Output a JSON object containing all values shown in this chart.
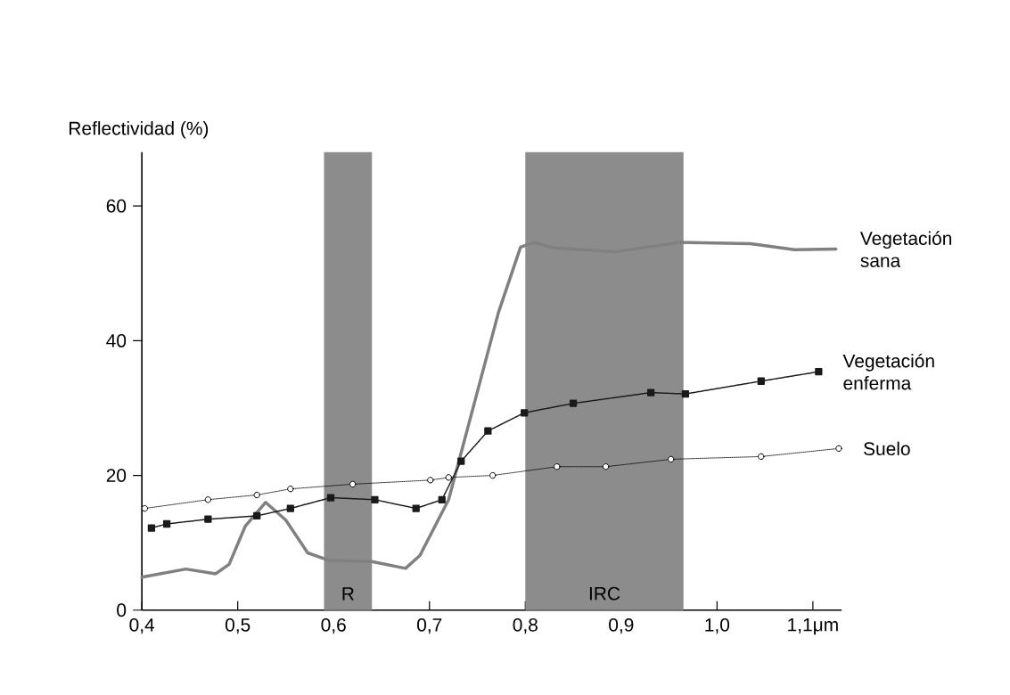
{
  "chart_data": {
    "type": "line",
    "ylabel": "Reflectividad (%)",
    "xlim": [
      0.4,
      1.13
    ],
    "ylim": [
      0,
      68
    ],
    "xticks": [
      {
        "value": 0.4,
        "label": "0,4"
      },
      {
        "value": 0.5,
        "label": "0,5"
      },
      {
        "value": 0.6,
        "label": "0,6"
      },
      {
        "value": 0.7,
        "label": "0,7"
      },
      {
        "value": 0.8,
        "label": "0,8"
      },
      {
        "value": 0.9,
        "label": "0,9"
      },
      {
        "value": 1.0,
        "label": "1,0"
      },
      {
        "value": 1.1,
        "label": "1,1μm"
      }
    ],
    "yticks": [
      0,
      20,
      40,
      60
    ],
    "series": [
      {
        "name": "Vegetación sana",
        "color": "#808080",
        "marker": "none",
        "line_style": "solid",
        "x": [
          0.4,
          0.446,
          0.477,
          0.491,
          0.508,
          0.529,
          0.55,
          0.573,
          0.595,
          0.64,
          0.675,
          0.69,
          0.72,
          0.749,
          0.772,
          0.795,
          0.809,
          0.829,
          0.894,
          0.961,
          1.035,
          1.081,
          1.124
        ],
        "values": [
          4.9,
          6.1,
          5.4,
          6.8,
          12.5,
          16.0,
          13.4,
          8.5,
          7.4,
          7.2,
          6.2,
          8.1,
          16.4,
          31.9,
          44.2,
          53.9,
          54.6,
          53.8,
          53.2,
          54.6,
          54.4,
          53.5,
          53.6
        ]
      },
      {
        "name": "Vegetación enferma",
        "color": "#1a1a1a",
        "marker": "square",
        "line_style": "dotted",
        "x": [
          0.41,
          0.426,
          0.469,
          0.52,
          0.555,
          0.597,
          0.643,
          0.686,
          0.713,
          0.733,
          0.761,
          0.799,
          0.85,
          0.931,
          0.967,
          1.046,
          1.106
        ],
        "values": [
          12.2,
          12.8,
          13.5,
          14.0,
          15.1,
          16.7,
          16.4,
          15.1,
          16.4,
          22.1,
          26.6,
          29.3,
          30.7,
          32.3,
          32.1,
          34.0,
          35.4
        ]
      },
      {
        "name": "Suelo",
        "color": "#ffffff",
        "marker": "circle",
        "line_style": "dotted",
        "x": [
          0.403,
          0.469,
          0.52,
          0.555,
          0.62,
          0.701,
          0.72,
          0.766,
          0.833,
          0.884,
          0.952,
          1.046,
          1.127
        ],
        "values": [
          15.1,
          16.4,
          17.1,
          18.0,
          18.7,
          19.3,
          19.7,
          20.0,
          21.3,
          21.3,
          22.4,
          22.8,
          24.0
        ]
      }
    ],
    "bands": [
      {
        "axis": "x",
        "from": 0.59,
        "to": 0.64,
        "label": "R",
        "color": "#8c8c8c"
      },
      {
        "axis": "x",
        "from": 0.8,
        "to": 0.965,
        "label": "IRC",
        "color": "#8c8c8c"
      }
    ]
  }
}
